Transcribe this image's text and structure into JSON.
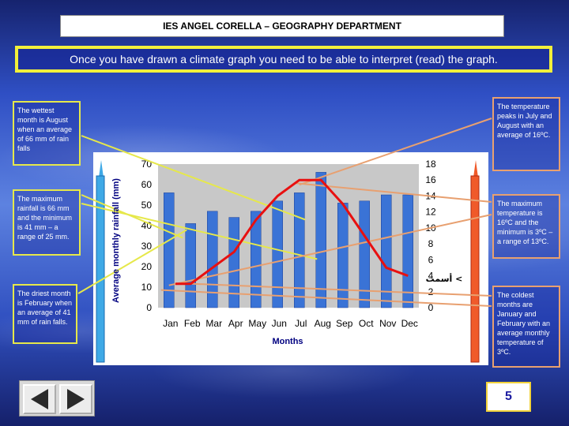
{
  "header": {
    "title": "IES ANGEL CORELLA  – GEOGRAPHY DEPARTMENT"
  },
  "banner": {
    "text": "Once you have drawn a climate graph you need to be able to interpret (read) the graph."
  },
  "notes": {
    "wettest": "The wettest month is August when an average of 66 mm of rain falls",
    "rain_range": "The maximum rainfall is 66 mm and the minimum is 41 mm – a range of 25 mm.",
    "driest": "The driest month is February when an average of 41 mm of rain falls.",
    "temp_peak": "The temperature peaks in July and August with an average of 16ºC.",
    "temp_range": "The maximum temperature is 16ºC and the minimum is 3ºC – a range of 13ºC.",
    "coldest": "The coldest months are January and February with an average monthly temperature of 3ºC."
  },
  "page_number": "5",
  "colors": {
    "bar": "#3a73d6",
    "line": "#e81010",
    "left_border": "#e6e84a",
    "right_border": "#e8a070"
  },
  "icons": {
    "prev": "triangle-left-icon",
    "next": "triangle-right-icon",
    "rain_thermometer": "thermometer-blue-icon",
    "temp_thermometer": "thermometer-red-icon"
  },
  "chart_data": {
    "type": "bar",
    "categories": [
      "Jan",
      "Feb",
      "Mar",
      "Apr",
      "May",
      "Jun",
      "Jul",
      "Aug",
      "Sep",
      "Oct",
      "Nov",
      "Dec"
    ],
    "series": [
      {
        "type": "bar",
        "axis": "left",
        "values": [
          56,
          41,
          47,
          44,
          47,
          52,
          56,
          66,
          51,
          52,
          55,
          55
        ]
      },
      {
        "type": "line",
        "axis": "right",
        "values": [
          3,
          3,
          5,
          7,
          11,
          14,
          16,
          16,
          13,
          9,
          5,
          4
        ]
      }
    ],
    "xlabel": "Months",
    "ylabel": "Average monthly rainfall (mm)",
    "y2label": "أسمت <",
    "ylim": [
      0,
      70
    ],
    "y2lim": [
      0,
      18
    ],
    "yticks": [
      0,
      10,
      20,
      30,
      40,
      50,
      60,
      70
    ],
    "y2ticks": [
      0,
      2,
      4,
      6,
      8,
      10,
      12,
      14,
      16,
      18
    ],
    "grid": false
  }
}
